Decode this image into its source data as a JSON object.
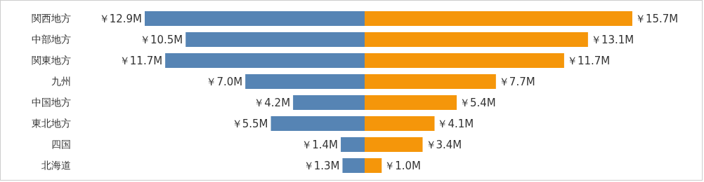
{
  "chart_data": [
    {
      "type": "bar",
      "orientation": "horizontal",
      "tick_labels": "y",
      "xlim": [
        12.9,
        0
      ],
      "categories": [
        "関西地方",
        "中部地方",
        "関東地方",
        "九州",
        "中国地方",
        "東北地方",
        "四国",
        "北海道"
      ],
      "series": [
        {
          "color": "#5684b4",
          "values": [
            12.9,
            10.5,
            11.7,
            7.0,
            4.2,
            5.5,
            1.4,
            1.3
          ],
          "value_labels": [
            "￥12.9M",
            "￥10.5M",
            "￥11.7M",
            "￥7.0M",
            "￥4.2M",
            "￥5.5M",
            "￥1.4M",
            "￥1.3M"
          ]
        }
      ]
    },
    {
      "type": "bar",
      "orientation": "horizontal",
      "tick_labels": false,
      "xlim": [
        0,
        15.7
      ],
      "categories": [
        null,
        null,
        null,
        null,
        null,
        null,
        null,
        null
      ],
      "series": [
        {
          "color": "#f5960a",
          "values": [
            15.7,
            13.1,
            11.7,
            7.7,
            5.4,
            4.1,
            3.4,
            1.0
          ],
          "value_labels": [
            "￥15.7M",
            "￥13.1M",
            "￥11.7M",
            "￥7.7M",
            "￥5.4M",
            "￥4.1M",
            "￥3.4M",
            "￥1.0M"
          ]
        }
      ]
    }
  ]
}
